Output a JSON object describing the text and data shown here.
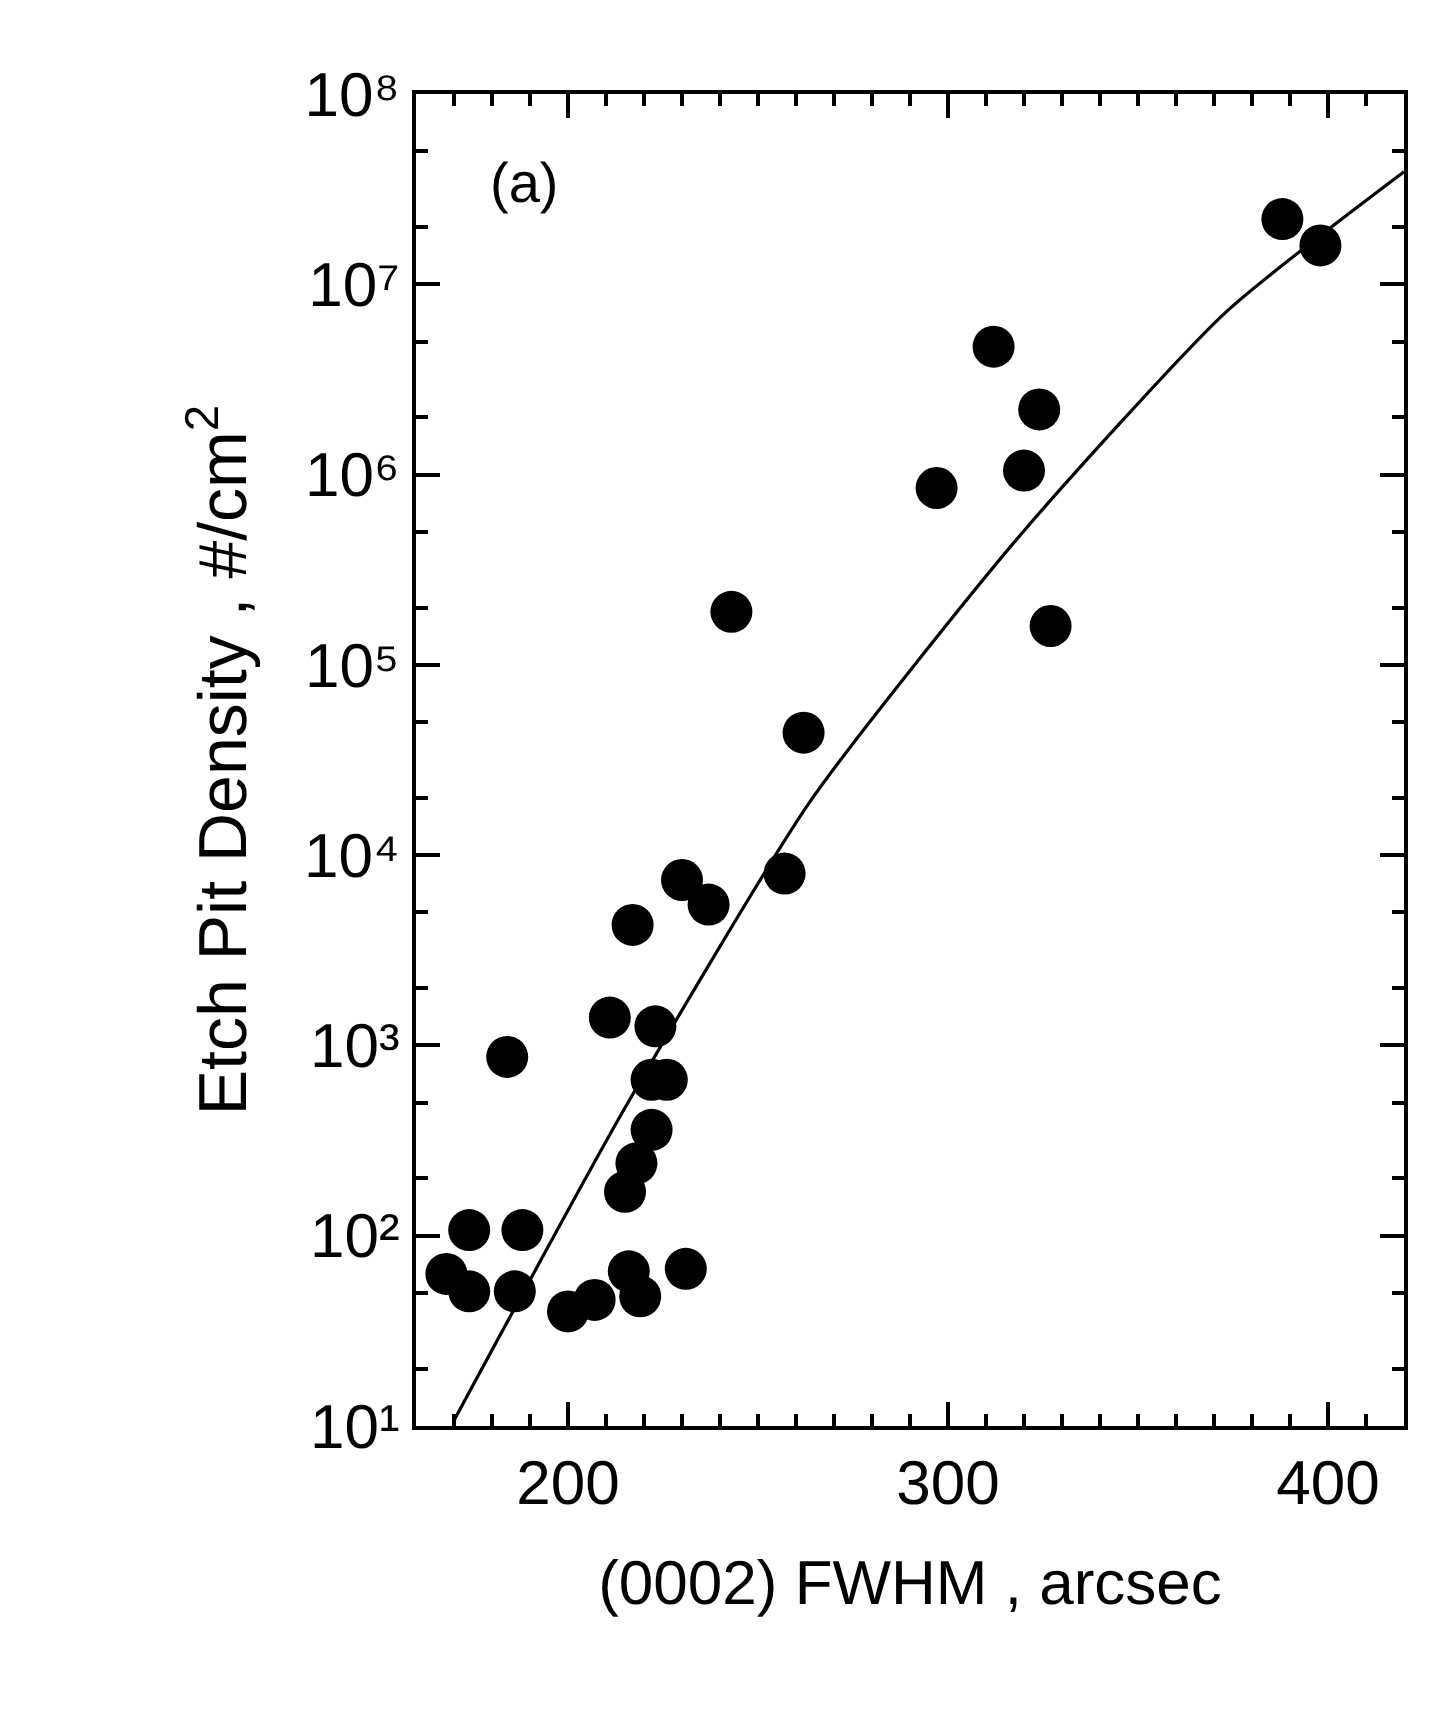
{
  "chart_data": {
    "type": "scatter",
    "xlabel": "(0002) FWHM , arcsec",
    "ylabel": "Etch Pit Density , #/cm$^{2}$",
    "annotations": [
      "(a)"
    ],
    "log": "y",
    "xlim": [
      160,
      420
    ],
    "xticks": [
      200,
      300,
      400
    ],
    "ylim": [
      10,
      100000000
    ],
    "yticks": [
      {
        "value": 10,
        "label": "10¹"
      },
      {
        "value": 100,
        "label": "10²"
      },
      {
        "value": 1000,
        "label": "10³"
      },
      {
        "value": 10000,
        "label": "10⁴"
      },
      {
        "value": 100000,
        "label": "10⁵"
      },
      {
        "value": 1000000,
        "label": "10⁶"
      },
      {
        "value": 10000000,
        "label": "10⁷"
      },
      {
        "value": 100000000,
        "label": "10⁸"
      }
    ],
    "series": [
      {
        "color": "#000000",
        "marker": "circle",
        "x": [
          388,
          398,
          312,
          324,
          320,
          297,
          243,
          327,
          262,
          257,
          230,
          237,
          217,
          211,
          223,
          184,
          222,
          226,
          222,
          218,
          215,
          174,
          188,
          168,
          174,
          186,
          200,
          207,
          216,
          219,
          231
        ],
        "values": [
          22000000,
          16000000,
          4700000,
          2200000,
          1050000,
          850000,
          190000,
          160000,
          44000,
          8000,
          7400,
          5500,
          4300,
          1400,
          1260,
          870,
          660,
          660,
          360,
          240,
          170,
          107,
          107,
          63,
          51,
          51,
          40,
          46,
          65,
          48,
          67
        ]
      },
      {
        "type": "line",
        "color": "#000000",
        "marker": "none",
        "line_style": "solid",
        "x": [
          170,
          215,
          264,
          319,
          373,
          420
        ],
        "values": [
          10.7,
          470,
          19500,
          480000,
          7100000,
          39000000
        ]
      }
    ]
  }
}
